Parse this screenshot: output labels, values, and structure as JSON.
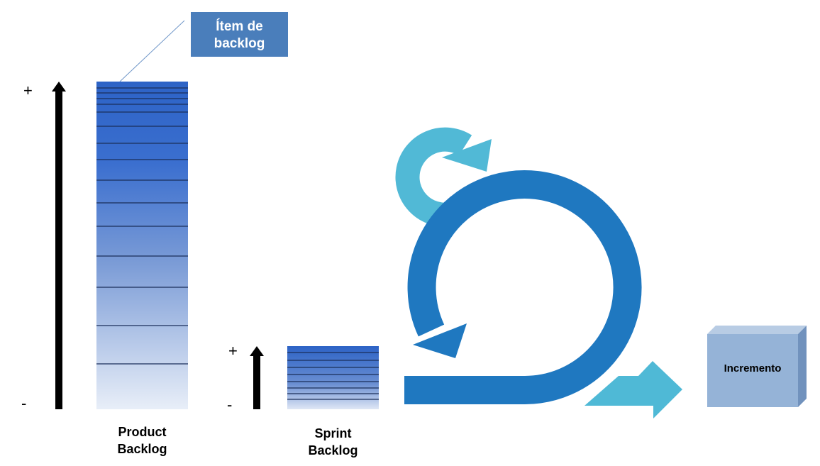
{
  "item_callout": {
    "line1": "Ítem de",
    "line2": "backlog"
  },
  "product_backlog": {
    "label_line1": "Product",
    "label_line2": "Backlog",
    "plus": "+",
    "minus": "-"
  },
  "sprint_backlog": {
    "label_line1": "Sprint",
    "label_line2": "Backlog",
    "plus": "+",
    "minus": "-"
  },
  "increment": {
    "label": "Incremento"
  },
  "icons": {
    "priority_arrow": "up-arrow-icon",
    "daily_cycle": "small-cycle-arrow-icon",
    "sprint_cycle": "large-cycle-arrow-icon",
    "delivery": "right-arrow-icon",
    "increment": "cube-icon"
  },
  "colors": {
    "backlog_top": "#2d63c6",
    "backlog_bottom": "#e8eef8",
    "callout": "#4a7ebb",
    "sprint_cycle": "#1f78c0",
    "daily_cycle": "#51b9d6",
    "delivery_arrow": "#4fb9d6",
    "cube_front": "#95b3d7",
    "cube_top": "#b8cce4",
    "cube_side": "#7192bd"
  }
}
